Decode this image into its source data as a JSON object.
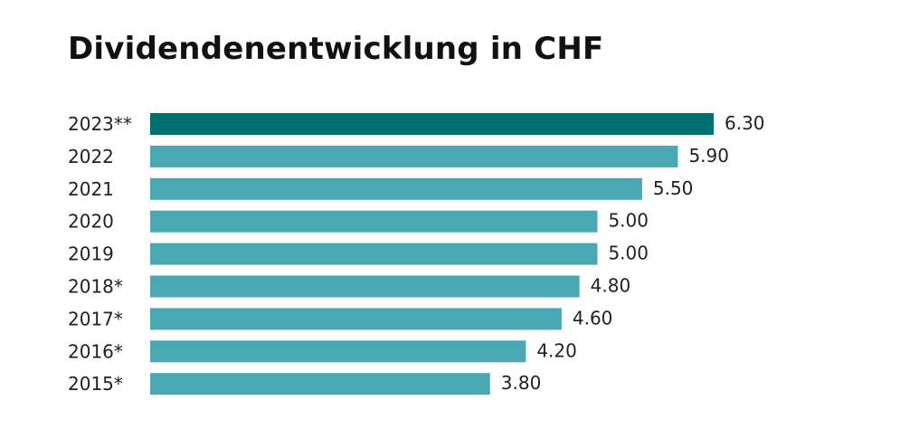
{
  "chart_data": {
    "type": "bar",
    "orientation": "horizontal",
    "title": "Dividendenentwicklung in CHF",
    "xlabel": "",
    "ylabel": "",
    "categories": [
      "2023**",
      "2022",
      "2021",
      "2020",
      "2019",
      "2018*",
      "2017*",
      "2016*",
      "2015*"
    ],
    "values": [
      6.3,
      5.9,
      5.5,
      5.0,
      5.0,
      4.8,
      4.6,
      4.2,
      3.8
    ],
    "value_labels": [
      "6.30",
      "5.90",
      "5.50",
      "5.00",
      "5.00",
      "4.80",
      "4.60",
      "4.20",
      "3.80"
    ],
    "xlim": [
      0,
      6.3
    ],
    "grid": false,
    "legend": "none",
    "colors": {
      "highlight": "#006f70",
      "default": "#4aa8b2"
    },
    "highlight_index": 0
  }
}
